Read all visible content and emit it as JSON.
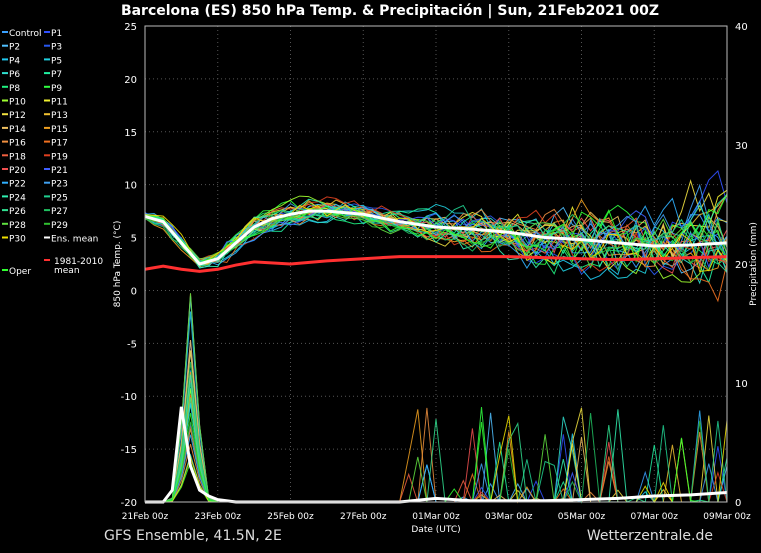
{
  "footer": {
    "left": "GFS Ensemble, 41.5N, 2E",
    "right": "Wetterzentrale.de"
  },
  "chart_data": {
    "type": "line",
    "title": "Barcelona  (ES)  850 hPa Temp. & Precipitación | Sun, 21Feb2021 00Z",
    "ylabel": "850 hPa Temp. (°C)",
    "y2label": "Precipitation (mm)",
    "xlabel": "Date (UTC)",
    "ylim": [
      -20,
      25
    ],
    "y2lim": [
      0,
      40
    ],
    "yticks": [
      25,
      20,
      15,
      10,
      5,
      0,
      -5,
      -10,
      -15,
      -20
    ],
    "y2ticks": [
      40,
      30,
      20,
      10,
      0
    ],
    "xlim_hours": [
      0,
      384
    ],
    "xticks": [
      "21Feb 00z",
      "23Feb 00z",
      "25Feb 00z",
      "27Feb 00z",
      "01Mar 00z",
      "03Mar 00z",
      "05Mar 00z",
      "07Mar 00z",
      "09Mar 00z"
    ],
    "grid": true,
    "legend_position": "left",
    "legend": [
      {
        "name": "Control",
        "color": "#3aa0ff"
      },
      {
        "name": "P1",
        "color": "#3050ff"
      },
      {
        "name": "P2",
        "color": "#50c0ff"
      },
      {
        "name": "P3",
        "color": "#2858f0"
      },
      {
        "name": "P4",
        "color": "#20c8f0"
      },
      {
        "name": "P5",
        "color": "#20d0e0"
      },
      {
        "name": "P6",
        "color": "#30e0d0"
      },
      {
        "name": "P7",
        "color": "#20f0a0"
      },
      {
        "name": "P8",
        "color": "#20f080"
      },
      {
        "name": "P9",
        "color": "#30ff40"
      },
      {
        "name": "P10",
        "color": "#a0ff30"
      },
      {
        "name": "P11",
        "color": "#f0f030"
      },
      {
        "name": "P12",
        "color": "#f0e040"
      },
      {
        "name": "P13",
        "color": "#f0c030"
      },
      {
        "name": "P14",
        "color": "#f0c060"
      },
      {
        "name": "P15",
        "color": "#f0a020"
      },
      {
        "name": "P16",
        "color": "#f09040"
      },
      {
        "name": "P17",
        "color": "#f07020"
      },
      {
        "name": "P18",
        "color": "#f06040"
      },
      {
        "name": "P19",
        "color": "#e04020"
      },
      {
        "name": "P20",
        "color": "#f05050"
      },
      {
        "name": "P21",
        "color": "#4060ff"
      },
      {
        "name": "P22",
        "color": "#30b0ff"
      },
      {
        "name": "P23",
        "color": "#40a0f0"
      },
      {
        "name": "P24",
        "color": "#30f0b0"
      },
      {
        "name": "P25",
        "color": "#20d090"
      },
      {
        "name": "P26",
        "color": "#30e090"
      },
      {
        "name": "P27",
        "color": "#20c060"
      },
      {
        "name": "P28",
        "color": "#60e040"
      },
      {
        "name": "P29",
        "color": "#30c030"
      },
      {
        "name": "P30",
        "color": "#f0e000"
      },
      {
        "name": "Ens. mean",
        "color": "#ffffff"
      },
      {
        "name": "1981-2010 mean",
        "color": "#ff3030"
      },
      {
        "name": "Oper",
        "color": "#30ff30"
      }
    ],
    "ens_mean_temp": {
      "hours": [
        0,
        12,
        24,
        36,
        48,
        60,
        72,
        84,
        96,
        108,
        120,
        144,
        168,
        192,
        216,
        240,
        264,
        288,
        312,
        336,
        360,
        384
      ],
      "values": [
        7,
        6.5,
        4.5,
        2.5,
        3,
        4.5,
        6,
        6.8,
        7.2,
        7.5,
        7.5,
        7.2,
        6.5,
        6,
        5.8,
        5.5,
        5,
        4.8,
        4.5,
        4.2,
        4.3,
        4.5
      ]
    },
    "climatology_temp": {
      "hours": [
        0,
        12,
        24,
        36,
        48,
        60,
        72,
        96,
        120,
        144,
        168,
        192,
        216,
        240,
        264,
        288,
        312,
        336,
        360,
        384
      ],
      "values": [
        2,
        2.3,
        2,
        1.8,
        2,
        2.4,
        2.7,
        2.5,
        2.8,
        3,
        3.2,
        3.2,
        3.2,
        3.2,
        3.1,
        3,
        2.9,
        3,
        3.1,
        3.2
      ]
    },
    "ens_mean_precip": {
      "hours": [
        0,
        12,
        18,
        24,
        30,
        36,
        42,
        48,
        60,
        72,
        96,
        120,
        144,
        168,
        192,
        216,
        240,
        264,
        288,
        312,
        336,
        360,
        384
      ],
      "values": [
        0,
        0,
        1,
        8,
        3,
        1,
        0.5,
        0.2,
        0,
        0,
        0,
        0,
        0,
        0,
        0.3,
        0.1,
        0.1,
        0.1,
        0.2,
        0.3,
        0.5,
        0.6,
        0.8
      ]
    }
  }
}
